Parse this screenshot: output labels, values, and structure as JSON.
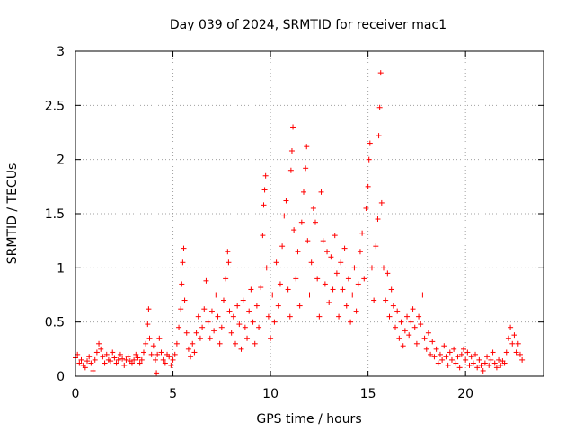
{
  "chart_data": {
    "type": "scatter",
    "title": "Day 039 of 2024, SRMTID for receiver mac1",
    "xlabel": "GPS time / hours",
    "ylabel": "SRMTID / TECUs",
    "xlim": [
      0,
      24
    ],
    "ylim": [
      0,
      3
    ],
    "xticks": [
      0,
      5,
      10,
      15,
      20
    ],
    "xtick_labels": [
      "0",
      "5",
      "10",
      "15",
      "20"
    ],
    "yticks": [
      0,
      0.5,
      1,
      1.5,
      2,
      2.5,
      3
    ],
    "ytick_labels": [
      "0",
      "0.5",
      "1",
      "1.5",
      "2",
      "2.5",
      "3"
    ],
    "grid": true,
    "marker": "+",
    "color": "#ff0000",
    "series": [
      {
        "name": "SRMTID",
        "points": [
          [
            0.0,
            0.17
          ],
          [
            0.1,
            0.2
          ],
          [
            0.2,
            0.12
          ],
          [
            0.3,
            0.15
          ],
          [
            0.4,
            0.1
          ],
          [
            0.5,
            0.08
          ],
          [
            0.6,
            0.14
          ],
          [
            0.7,
            0.18
          ],
          [
            0.8,
            0.12
          ],
          [
            0.9,
            0.05
          ],
          [
            1.0,
            0.15
          ],
          [
            1.1,
            0.22
          ],
          [
            1.2,
            0.3
          ],
          [
            1.3,
            0.25
          ],
          [
            1.4,
            0.18
          ],
          [
            1.5,
            0.12
          ],
          [
            1.6,
            0.2
          ],
          [
            1.7,
            0.15
          ],
          [
            1.8,
            0.14
          ],
          [
            1.9,
            0.22
          ],
          [
            2.0,
            0.17
          ],
          [
            2.1,
            0.12
          ],
          [
            2.2,
            0.15
          ],
          [
            2.3,
            0.2
          ],
          [
            2.4,
            0.16
          ],
          [
            2.5,
            0.1
          ],
          [
            2.6,
            0.15
          ],
          [
            2.7,
            0.18
          ],
          [
            2.8,
            0.14
          ],
          [
            2.9,
            0.12
          ],
          [
            3.0,
            0.15
          ],
          [
            3.1,
            0.2
          ],
          [
            3.2,
            0.17
          ],
          [
            3.3,
            0.12
          ],
          [
            3.4,
            0.15
          ],
          [
            3.5,
            0.22
          ],
          [
            3.6,
            0.3
          ],
          [
            3.7,
            0.48
          ],
          [
            3.75,
            0.62
          ],
          [
            3.8,
            0.35
          ],
          [
            3.9,
            0.2
          ],
          [
            4.0,
            0.28
          ],
          [
            4.1,
            0.15
          ],
          [
            4.15,
            0.03
          ],
          [
            4.2,
            0.2
          ],
          [
            4.3,
            0.35
          ],
          [
            4.4,
            0.22
          ],
          [
            4.5,
            0.15
          ],
          [
            4.6,
            0.12
          ],
          [
            4.7,
            0.2
          ],
          [
            4.8,
            0.18
          ],
          [
            4.9,
            0.1
          ],
          [
            5.0,
            0.15
          ],
          [
            5.1,
            0.2
          ],
          [
            5.2,
            0.3
          ],
          [
            5.3,
            0.45
          ],
          [
            5.4,
            0.62
          ],
          [
            5.45,
            0.85
          ],
          [
            5.5,
            1.05
          ],
          [
            5.55,
            1.18
          ],
          [
            5.6,
            0.7
          ],
          [
            5.7,
            0.4
          ],
          [
            5.8,
            0.25
          ],
          [
            5.9,
            0.18
          ],
          [
            6.0,
            0.3
          ],
          [
            6.1,
            0.22
          ],
          [
            6.2,
            0.4
          ],
          [
            6.3,
            0.55
          ],
          [
            6.4,
            0.35
          ],
          [
            6.5,
            0.45
          ],
          [
            6.6,
            0.62
          ],
          [
            6.7,
            0.88
          ],
          [
            6.8,
            0.5
          ],
          [
            6.9,
            0.35
          ],
          [
            7.0,
            0.6
          ],
          [
            7.1,
            0.42
          ],
          [
            7.2,
            0.75
          ],
          [
            7.3,
            0.55
          ],
          [
            7.4,
            0.3
          ],
          [
            7.5,
            0.45
          ],
          [
            7.6,
            0.7
          ],
          [
            7.7,
            0.9
          ],
          [
            7.8,
            1.15
          ],
          [
            7.85,
            1.05
          ],
          [
            7.9,
            0.6
          ],
          [
            8.0,
            0.4
          ],
          [
            8.1,
            0.55
          ],
          [
            8.2,
            0.3
          ],
          [
            8.3,
            0.65
          ],
          [
            8.4,
            0.48
          ],
          [
            8.5,
            0.25
          ],
          [
            8.6,
            0.7
          ],
          [
            8.7,
            0.45
          ],
          [
            8.8,
            0.35
          ],
          [
            8.9,
            0.6
          ],
          [
            9.0,
            0.8
          ],
          [
            9.1,
            0.5
          ],
          [
            9.2,
            0.3
          ],
          [
            9.3,
            0.65
          ],
          [
            9.4,
            0.45
          ],
          [
            9.5,
            0.82
          ],
          [
            9.6,
            1.3
          ],
          [
            9.65,
            1.58
          ],
          [
            9.7,
            1.72
          ],
          [
            9.75,
            1.85
          ],
          [
            9.8,
            1.0
          ],
          [
            9.9,
            0.55
          ],
          [
            10.0,
            0.35
          ],
          [
            10.1,
            0.75
          ],
          [
            10.2,
            0.5
          ],
          [
            10.3,
            1.05
          ],
          [
            10.4,
            0.65
          ],
          [
            10.5,
            0.85
          ],
          [
            10.6,
            1.2
          ],
          [
            10.7,
            1.48
          ],
          [
            10.8,
            1.62
          ],
          [
            10.9,
            0.8
          ],
          [
            11.0,
            0.55
          ],
          [
            11.05,
            1.9
          ],
          [
            11.1,
            2.08
          ],
          [
            11.15,
            2.3
          ],
          [
            11.2,
            1.35
          ],
          [
            11.3,
            0.9
          ],
          [
            11.4,
            1.15
          ],
          [
            11.5,
            0.65
          ],
          [
            11.6,
            1.42
          ],
          [
            11.7,
            1.7
          ],
          [
            11.8,
            1.92
          ],
          [
            11.85,
            2.12
          ],
          [
            11.9,
            1.25
          ],
          [
            12.0,
            0.75
          ],
          [
            12.1,
            1.05
          ],
          [
            12.2,
            1.55
          ],
          [
            12.3,
            1.42
          ],
          [
            12.4,
            0.9
          ],
          [
            12.5,
            0.55
          ],
          [
            12.6,
            1.7
          ],
          [
            12.7,
            1.25
          ],
          [
            12.8,
            0.85
          ],
          [
            12.9,
            1.15
          ],
          [
            13.0,
            0.68
          ],
          [
            13.1,
            1.1
          ],
          [
            13.2,
            0.8
          ],
          [
            13.3,
            1.3
          ],
          [
            13.4,
            0.95
          ],
          [
            13.5,
            0.55
          ],
          [
            13.6,
            1.05
          ],
          [
            13.7,
            0.8
          ],
          [
            13.8,
            1.18
          ],
          [
            13.9,
            0.65
          ],
          [
            14.0,
            0.9
          ],
          [
            14.1,
            0.5
          ],
          [
            14.2,
            0.75
          ],
          [
            14.3,
            1.0
          ],
          [
            14.4,
            0.6
          ],
          [
            14.5,
            0.85
          ],
          [
            14.6,
            1.15
          ],
          [
            14.7,
            1.32
          ],
          [
            14.8,
            0.9
          ],
          [
            14.9,
            1.55
          ],
          [
            15.0,
            1.75
          ],
          [
            15.05,
            2.0
          ],
          [
            15.1,
            2.15
          ],
          [
            15.2,
            1.0
          ],
          [
            15.3,
            0.7
          ],
          [
            15.4,
            1.2
          ],
          [
            15.5,
            1.45
          ],
          [
            15.55,
            2.22
          ],
          [
            15.6,
            2.48
          ],
          [
            15.65,
            2.8
          ],
          [
            15.7,
            1.6
          ],
          [
            15.8,
            1.0
          ],
          [
            15.9,
            0.7
          ],
          [
            16.0,
            0.95
          ],
          [
            16.1,
            0.55
          ],
          [
            16.2,
            0.8
          ],
          [
            16.3,
            0.65
          ],
          [
            16.4,
            0.45
          ],
          [
            16.5,
            0.6
          ],
          [
            16.6,
            0.35
          ],
          [
            16.7,
            0.5
          ],
          [
            16.8,
            0.28
          ],
          [
            16.9,
            0.42
          ],
          [
            17.0,
            0.55
          ],
          [
            17.1,
            0.38
          ],
          [
            17.2,
            0.5
          ],
          [
            17.3,
            0.62
          ],
          [
            17.4,
            0.45
          ],
          [
            17.5,
            0.3
          ],
          [
            17.6,
            0.55
          ],
          [
            17.7,
            0.48
          ],
          [
            17.8,
            0.75
          ],
          [
            17.9,
            0.35
          ],
          [
            18.0,
            0.25
          ],
          [
            18.1,
            0.4
          ],
          [
            18.2,
            0.2
          ],
          [
            18.3,
            0.32
          ],
          [
            18.4,
            0.18
          ],
          [
            18.5,
            0.25
          ],
          [
            18.6,
            0.12
          ],
          [
            18.7,
            0.2
          ],
          [
            18.8,
            0.15
          ],
          [
            18.9,
            0.28
          ],
          [
            19.0,
            0.18
          ],
          [
            19.1,
            0.1
          ],
          [
            19.2,
            0.22
          ],
          [
            19.3,
            0.15
          ],
          [
            19.4,
            0.25
          ],
          [
            19.5,
            0.12
          ],
          [
            19.6,
            0.18
          ],
          [
            19.7,
            0.08
          ],
          [
            19.8,
            0.2
          ],
          [
            19.9,
            0.25
          ],
          [
            20.0,
            0.15
          ],
          [
            20.1,
            0.22
          ],
          [
            20.2,
            0.1
          ],
          [
            20.3,
            0.18
          ],
          [
            20.4,
            0.12
          ],
          [
            20.5,
            0.2
          ],
          [
            20.6,
            0.08
          ],
          [
            20.7,
            0.15
          ],
          [
            20.8,
            0.1
          ],
          [
            20.9,
            0.05
          ],
          [
            21.0,
            0.12
          ],
          [
            21.1,
            0.18
          ],
          [
            21.2,
            0.1
          ],
          [
            21.3,
            0.15
          ],
          [
            21.4,
            0.22
          ],
          [
            21.5,
            0.12
          ],
          [
            21.6,
            0.08
          ],
          [
            21.7,
            0.15
          ],
          [
            21.8,
            0.1
          ],
          [
            21.9,
            0.14
          ],
          [
            22.0,
            0.12
          ],
          [
            22.1,
            0.22
          ],
          [
            22.2,
            0.35
          ],
          [
            22.3,
            0.45
          ],
          [
            22.4,
            0.3
          ],
          [
            22.5,
            0.38
          ],
          [
            22.6,
            0.22
          ],
          [
            22.7,
            0.3
          ],
          [
            22.8,
            0.2
          ],
          [
            22.9,
            0.15
          ]
        ]
      }
    ]
  }
}
